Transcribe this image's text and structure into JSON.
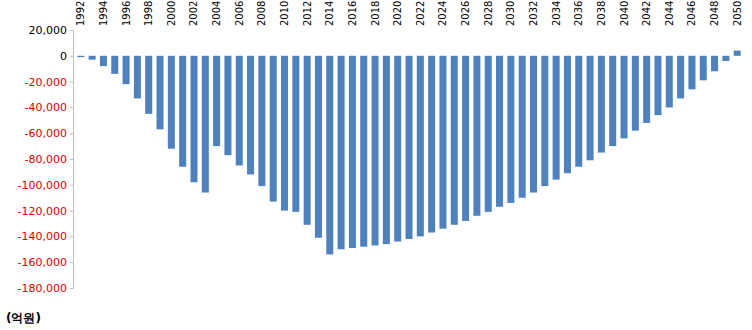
{
  "chart_data": {
    "type": "bar",
    "y_label": "(억원)",
    "categories": [
      "1992",
      null,
      "1994",
      null,
      "1996",
      null,
      "1998",
      null,
      "2000",
      null,
      "2002",
      null,
      "2004",
      null,
      "2006",
      null,
      "2008",
      null,
      "2010",
      null,
      "2012",
      null,
      "2014",
      null,
      "2016",
      null,
      "2018",
      null,
      "2020",
      null,
      "2022",
      null,
      "2024",
      null,
      "2026",
      null,
      "2028",
      null,
      "2030",
      null,
      "2032",
      null,
      "2034",
      null,
      "2036",
      null,
      "2038",
      null,
      "2040",
      null,
      "2042",
      null,
      "2044",
      null,
      "2046",
      null,
      "2048",
      null,
      "2050"
    ],
    "values": [
      -1000,
      -3000,
      -8000,
      -14000,
      -22000,
      -33000,
      -45000,
      -57000,
      -72000,
      -86000,
      -98000,
      -106000,
      -70000,
      -77000,
      -85000,
      -92000,
      -101000,
      -113000,
      -120000,
      -121000,
      -131000,
      -141000,
      -154000,
      -150000,
      -149000,
      -148000,
      -147000,
      -146000,
      -144000,
      -142000,
      -140000,
      -137000,
      -134000,
      -131000,
      -128000,
      -124000,
      -121000,
      -117000,
      -114000,
      -110000,
      -106000,
      -101000,
      -96000,
      -91000,
      -86000,
      -81000,
      -75000,
      -70000,
      -64000,
      -58000,
      -52000,
      -46000,
      -40000,
      -33000,
      -26000,
      -19000,
      -12000,
      -4000,
      4000
    ],
    "color": "#4f81bd",
    "ylim": [
      -180000,
      20000
    ],
    "yticks": [
      {
        "value": 20000,
        "label": "20,000"
      },
      0,
      {
        "value": -20000,
        "label": "-20,000"
      },
      {
        "value": -40000,
        "label": "-40,000"
      },
      {
        "value": -60000,
        "label": "-60,000"
      },
      {
        "value": -80000,
        "label": "-80,000"
      },
      {
        "value": -100000,
        "label": "-100,000"
      },
      {
        "value": -120000,
        "label": "-120,000"
      },
      {
        "value": -140000,
        "label": "-140,000"
      },
      {
        "value": -160000,
        "label": "-160,000"
      },
      {
        "value": -180000,
        "label": "-180,000"
      }
    ],
    "grid": false
  }
}
